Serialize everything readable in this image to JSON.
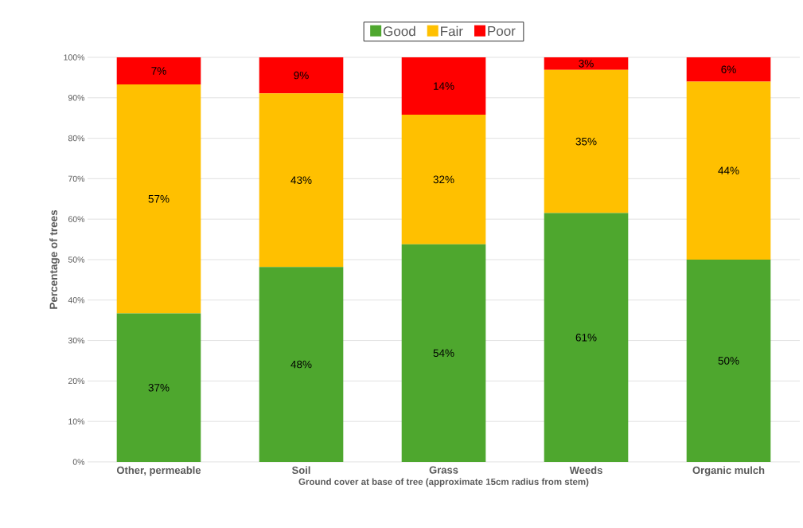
{
  "chart_data": {
    "type": "bar",
    "stacked": true,
    "xlabel": "Ground cover at base of tree (approximate 15cm radius from stem)",
    "ylabel": "Percentage of trees",
    "categories": [
      "Other, permeable",
      "Soil",
      "Grass",
      "Weeds",
      "Organic mulch"
    ],
    "series": [
      {
        "name": "Good",
        "color": "#4ea72e",
        "values": [
          36.7,
          48.2,
          53.8,
          61.5,
          50.0
        ],
        "value_labels": [
          "37%",
          "48%",
          "54%",
          "61%",
          "50%"
        ]
      },
      {
        "name": "Fair",
        "color": "#ffc000",
        "values": [
          56.6,
          42.9,
          32.0,
          35.4,
          44.0
        ],
        "value_labels": [
          "57%",
          "43%",
          "32%",
          "35%",
          "44%"
        ]
      },
      {
        "name": "Poor",
        "color": "#ff0000",
        "values": [
          6.7,
          8.9,
          14.2,
          3.1,
          6.0
        ],
        "value_labels": [
          "7%",
          "9%",
          "14%",
          "3%",
          "6%"
        ]
      }
    ],
    "ylim": [
      0,
      100
    ],
    "yticks": [
      {
        "value": 0,
        "label": "0%"
      },
      {
        "value": 10,
        "label": "10%"
      },
      {
        "value": 20,
        "label": "20%"
      },
      {
        "value": 30,
        "label": "30%"
      },
      {
        "value": 40,
        "label": "40%"
      },
      {
        "value": 50,
        "label": "50%"
      },
      {
        "value": 60,
        "label": "60%"
      },
      {
        "value": 70,
        "label": "70%"
      },
      {
        "value": 80,
        "label": "80%"
      },
      {
        "value": 90,
        "label": "90%"
      },
      {
        "value": 100,
        "label": "100%"
      }
    ],
    "grid": "y",
    "legend": "top"
  }
}
